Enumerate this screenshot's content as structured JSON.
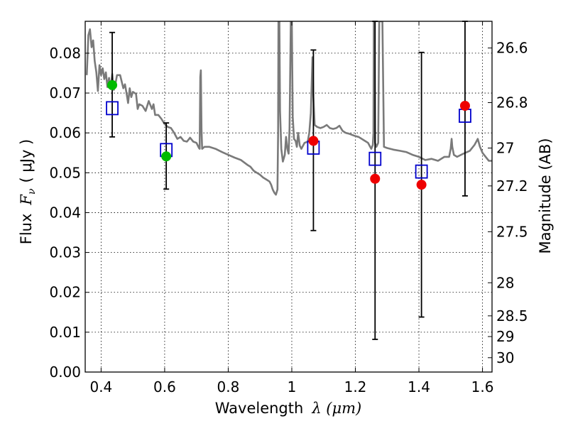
{
  "chart_data": {
    "type": "scatter",
    "xlabel": "Wavelength",
    "xlabel_math": "λ (μm)",
    "ylabel": "Flux",
    "ylabel_math": "F",
    "ylabel_sub": "ν",
    "ylabel_unit": "( μJy )",
    "y2label": "Magnitude (AB)",
    "xlim": [
      0.35,
      1.63
    ],
    "ylim": [
      0.0,
      0.088
    ],
    "grid": true,
    "x_ticks": [
      {
        "value": 0.4,
        "label": "0.4"
      },
      {
        "value": 0.6,
        "label": "0.6"
      },
      {
        "value": 0.8,
        "label": "0.8"
      },
      {
        "value": 1.0,
        "label": "1"
      },
      {
        "value": 1.2,
        "label": "1.2"
      },
      {
        "value": 1.4,
        "label": "1.4"
      },
      {
        "value": 1.6,
        "label": "1.6"
      }
    ],
    "y_ticks": [
      {
        "value": 0.0,
        "label": "0.00"
      },
      {
        "value": 0.01,
        "label": "0.01"
      },
      {
        "value": 0.02,
        "label": "0.02"
      },
      {
        "value": 0.03,
        "label": "0.03"
      },
      {
        "value": 0.04,
        "label": "0.04"
      },
      {
        "value": 0.05,
        "label": "0.05"
      },
      {
        "value": 0.06,
        "label": "0.06"
      },
      {
        "value": 0.07,
        "label": "0.07"
      },
      {
        "value": 0.08,
        "label": "0.08"
      }
    ],
    "y2_ticks": [
      {
        "flux": 0.0813,
        "label": "26.6"
      },
      {
        "flux": 0.0676,
        "label": "26.8"
      },
      {
        "flux": 0.0562,
        "label": "27"
      },
      {
        "flux": 0.0467,
        "label": "27.2"
      },
      {
        "flux": 0.0352,
        "label": "27.5"
      },
      {
        "flux": 0.0224,
        "label": "28"
      },
      {
        "flux": 0.0141,
        "label": "28.5"
      },
      {
        "flux": 0.0089,
        "label": "29"
      },
      {
        "flux": 0.0036,
        "label": "30"
      }
    ],
    "series": [
      {
        "kind": "model_spectrum",
        "color": "#7a7a7a",
        "points": [
          [
            0.355,
            0.0745
          ],
          [
            0.36,
            0.0845
          ],
          [
            0.365,
            0.086
          ],
          [
            0.37,
            0.0815
          ],
          [
            0.375,
            0.0832
          ],
          [
            0.38,
            0.078
          ],
          [
            0.385,
            0.0752
          ],
          [
            0.39,
            0.0705
          ],
          [
            0.395,
            0.077
          ],
          [
            0.4,
            0.0745
          ],
          [
            0.405,
            0.0762
          ],
          [
            0.41,
            0.0735
          ],
          [
            0.415,
            0.0752
          ],
          [
            0.42,
            0.0715
          ],
          [
            0.425,
            0.0738
          ],
          [
            0.43,
            0.071
          ],
          [
            0.435,
            0.0748
          ],
          [
            0.44,
            0.0708
          ],
          [
            0.445,
            0.0722
          ],
          [
            0.45,
            0.0745
          ],
          [
            0.455,
            0.0745
          ],
          [
            0.46,
            0.0745
          ],
          [
            0.465,
            0.0728
          ],
          [
            0.47,
            0.0712
          ],
          [
            0.475,
            0.0722
          ],
          [
            0.48,
            0.07
          ],
          [
            0.485,
            0.0675
          ],
          [
            0.49,
            0.0712
          ],
          [
            0.495,
            0.069
          ],
          [
            0.5,
            0.0703
          ],
          [
            0.51,
            0.0698
          ],
          [
            0.515,
            0.066
          ],
          [
            0.52,
            0.0672
          ],
          [
            0.53,
            0.0668
          ],
          [
            0.54,
            0.0655
          ],
          [
            0.55,
            0.068
          ],
          [
            0.56,
            0.066
          ],
          [
            0.565,
            0.0672
          ],
          [
            0.57,
            0.0645
          ],
          [
            0.58,
            0.0645
          ],
          [
            0.59,
            0.0635
          ],
          [
            0.6,
            0.0622
          ],
          [
            0.61,
            0.0615
          ],
          [
            0.62,
            0.0612
          ],
          [
            0.63,
            0.06
          ],
          [
            0.64,
            0.0585
          ],
          [
            0.65,
            0.059
          ],
          [
            0.66,
            0.058
          ],
          [
            0.67,
            0.0578
          ],
          [
            0.68,
            0.0588
          ],
          [
            0.69,
            0.0578
          ],
          [
            0.7,
            0.0575
          ],
          [
            0.708,
            0.0562
          ],
          [
            0.71,
            0.056
          ],
          [
            0.712,
            0.074
          ],
          [
            0.714,
            0.0757
          ],
          [
            0.716,
            0.061
          ],
          [
            0.718,
            0.056
          ],
          [
            0.725,
            0.0565
          ],
          [
            0.74,
            0.0565
          ],
          [
            0.76,
            0.056
          ],
          [
            0.78,
            0.0552
          ],
          [
            0.8,
            0.0545
          ],
          [
            0.82,
            0.0538
          ],
          [
            0.84,
            0.0532
          ],
          [
            0.86,
            0.052
          ],
          [
            0.87,
            0.0515
          ],
          [
            0.88,
            0.0505
          ],
          [
            0.89,
            0.05
          ],
          [
            0.9,
            0.0495
          ],
          [
            0.91,
            0.0488
          ],
          [
            0.92,
            0.0483
          ],
          [
            0.93,
            0.0478
          ],
          [
            0.935,
            0.047
          ],
          [
            0.94,
            0.0458
          ],
          [
            0.945,
            0.045
          ],
          [
            0.95,
            0.0445
          ],
          [
            0.955,
            0.0458
          ],
          [
            0.957,
            0.06
          ],
          [
            0.958,
            0.088
          ],
          [
            0.961,
            0.088
          ],
          [
            0.963,
            0.0655
          ],
          [
            0.967,
            0.056
          ],
          [
            0.972,
            0.0528
          ],
          [
            0.978,
            0.0545
          ],
          [
            0.982,
            0.059
          ],
          [
            0.986,
            0.056
          ],
          [
            0.99,
            0.0548
          ],
          [
            0.993,
            0.0612
          ],
          [
            0.997,
            0.088
          ],
          [
            1.0,
            0.088
          ],
          [
            1.003,
            0.064
          ],
          [
            1.007,
            0.0585
          ],
          [
            1.012,
            0.058
          ],
          [
            1.016,
            0.0565
          ],
          [
            1.02,
            0.06
          ],
          [
            1.025,
            0.0568
          ],
          [
            1.03,
            0.056
          ],
          [
            1.04,
            0.0575
          ],
          [
            1.05,
            0.0578
          ],
          [
            1.055,
            0.06
          ],
          [
            1.06,
            0.065
          ],
          [
            1.063,
            0.0735
          ],
          [
            1.065,
            0.079
          ],
          [
            1.068,
            0.069
          ],
          [
            1.072,
            0.062
          ],
          [
            1.08,
            0.0615
          ],
          [
            1.09,
            0.0612
          ],
          [
            1.1,
            0.0615
          ],
          [
            1.11,
            0.062
          ],
          [
            1.12,
            0.0612
          ],
          [
            1.13,
            0.061
          ],
          [
            1.14,
            0.0612
          ],
          [
            1.15,
            0.0618
          ],
          [
            1.16,
            0.0605
          ],
          [
            1.17,
            0.06
          ],
          [
            1.18,
            0.0598
          ],
          [
            1.19,
            0.0595
          ],
          [
            1.2,
            0.0592
          ],
          [
            1.21,
            0.059
          ],
          [
            1.22,
            0.0585
          ],
          [
            1.23,
            0.058
          ],
          [
            1.24,
            0.0575
          ],
          [
            1.25,
            0.056
          ],
          [
            1.255,
            0.057
          ],
          [
            1.257,
            0.06
          ],
          [
            1.258,
            0.088
          ],
          [
            1.26,
            0.088
          ],
          [
            1.262,
            0.0575
          ],
          [
            1.266,
            0.0565
          ],
          [
            1.272,
            0.0575
          ],
          [
            1.275,
            0.088
          ],
          [
            1.285,
            0.088
          ],
          [
            1.29,
            0.0565
          ],
          [
            1.3,
            0.0562
          ],
          [
            1.32,
            0.0558
          ],
          [
            1.34,
            0.0555
          ],
          [
            1.36,
            0.0552
          ],
          [
            1.38,
            0.0545
          ],
          [
            1.4,
            0.054
          ],
          [
            1.42,
            0.0532
          ],
          [
            1.44,
            0.0535
          ],
          [
            1.46,
            0.053
          ],
          [
            1.48,
            0.054
          ],
          [
            1.495,
            0.054
          ],
          [
            1.5,
            0.056
          ],
          [
            1.503,
            0.0585
          ],
          [
            1.505,
            0.0565
          ],
          [
            1.51,
            0.0545
          ],
          [
            1.52,
            0.054
          ],
          [
            1.54,
            0.0548
          ],
          [
            1.56,
            0.0555
          ],
          [
            1.575,
            0.057
          ],
          [
            1.585,
            0.0585
          ],
          [
            1.592,
            0.0565
          ],
          [
            1.6,
            0.055
          ],
          [
            1.61,
            0.054
          ],
          [
            1.62,
            0.053
          ],
          [
            1.63,
            0.053
          ]
        ]
      },
      {
        "kind": "model_photometry",
        "marker": "open-square",
        "color": "#0000cc",
        "points": [
          [
            0.435,
            0.0662
          ],
          [
            0.605,
            0.0557
          ],
          [
            1.068,
            0.0563
          ],
          [
            1.262,
            0.0535
          ],
          [
            1.408,
            0.0503
          ],
          [
            1.545,
            0.0643
          ]
        ]
      },
      {
        "kind": "detections",
        "marker": "filled-circle",
        "color": "#00bb00",
        "points": [
          {
            "x": 0.435,
            "y": 0.072,
            "yerr_lo": 0.059,
            "yerr_hi": 0.0852
          },
          {
            "x": 0.605,
            "y": 0.0541,
            "yerr_lo": 0.0459,
            "yerr_hi": 0.0625
          }
        ]
      },
      {
        "kind": "detections",
        "marker": "filled-circle",
        "color": "#ee0000",
        "points": [
          {
            "x": 1.068,
            "y": 0.058,
            "yerr_lo": 0.0355,
            "yerr_hi": 0.0808
          },
          {
            "x": 1.262,
            "y": 0.0485,
            "yerr_lo": 0.0082,
            "yerr_hi": 0.088
          },
          {
            "x": 1.408,
            "y": 0.047,
            "yerr_lo": 0.0138,
            "yerr_hi": 0.0802
          },
          {
            "x": 1.545,
            "y": 0.0668,
            "yerr_lo": 0.0442,
            "yerr_hi": 0.088
          }
        ]
      }
    ]
  }
}
